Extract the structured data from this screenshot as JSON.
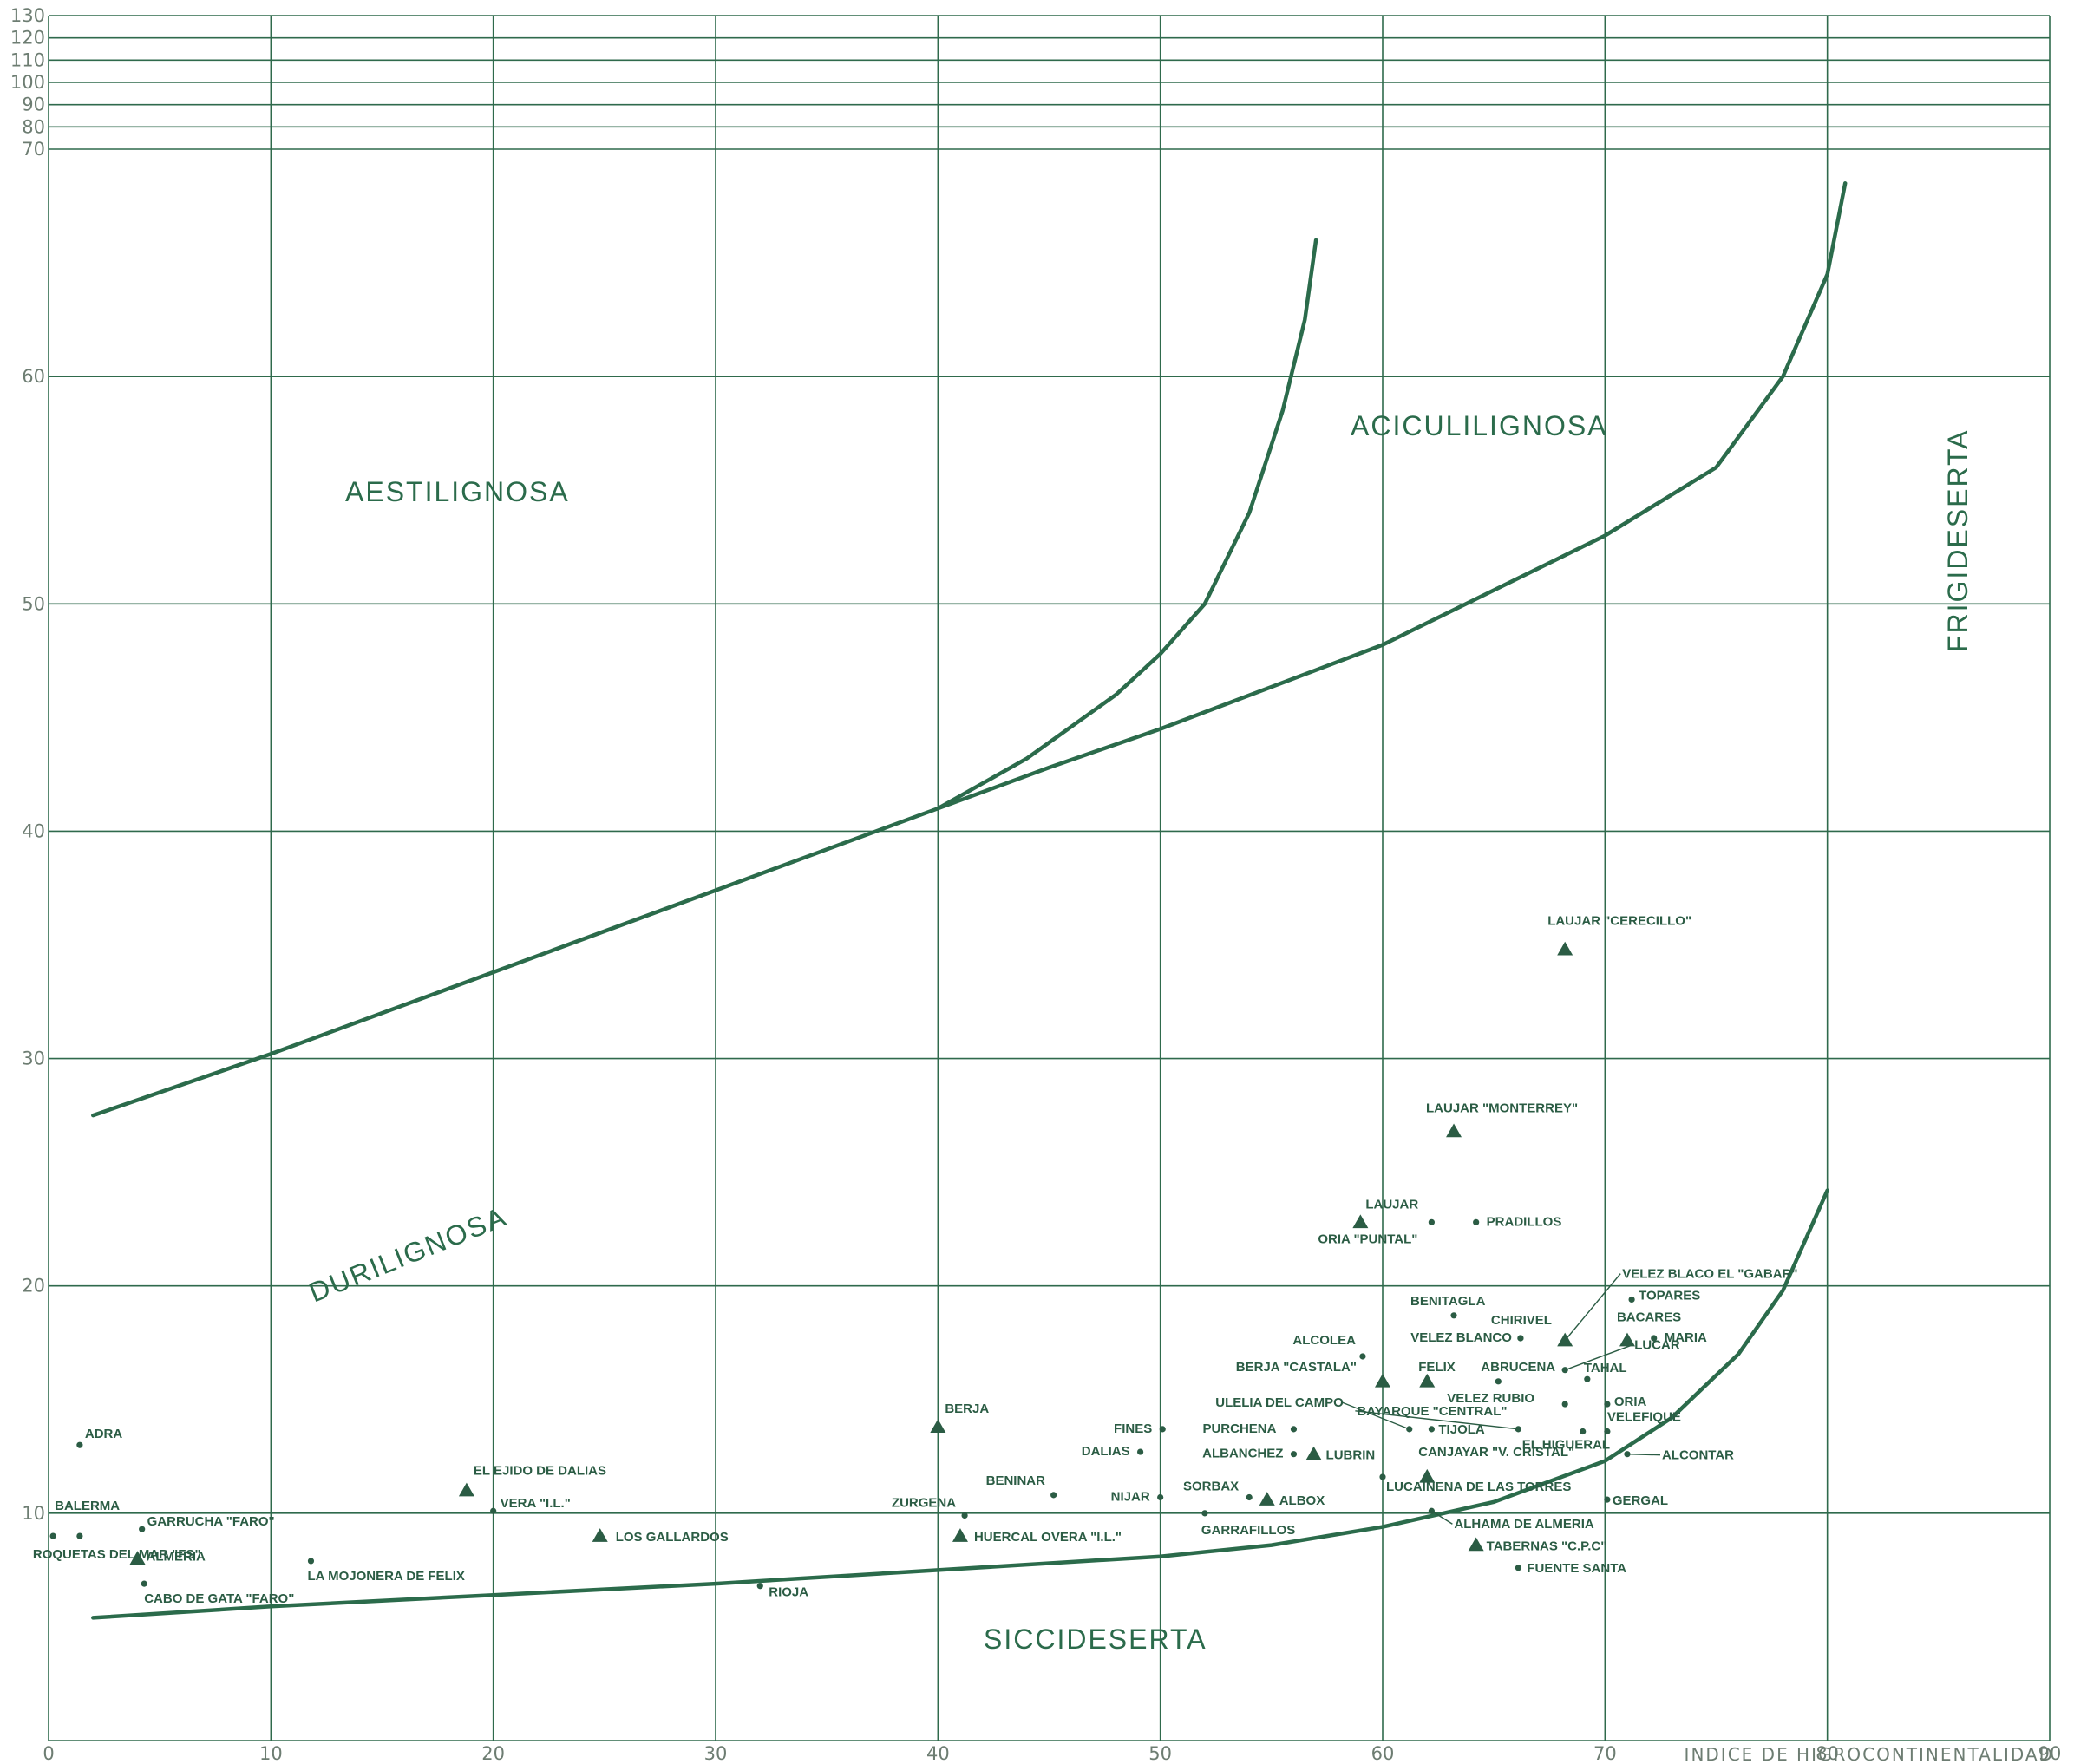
{
  "chart_data": {
    "type": "scatter",
    "title": "",
    "xlabel": "INDICE DE HIGROCONTINENTALIDAD",
    "ylabel": "",
    "xlim": [
      0,
      90
    ],
    "ylim": [
      0,
      130
    ],
    "x_ticks": [
      "0",
      "10",
      "20",
      "30",
      "40",
      "50",
      "60",
      "70",
      "80",
      "90"
    ],
    "y_ticks": [
      "10",
      "20",
      "30",
      "40",
      "50",
      "60",
      "70",
      "80",
      "90",
      "100",
      "110",
      "120",
      "130"
    ],
    "grid": true,
    "regions": [
      "AESTILIGNOSA",
      "ACICULILIGNOSA",
      "DURILIGNOSA",
      "SICCIDESERTA",
      "FRIGIDESERTA"
    ],
    "boundaries": [
      {
        "points": [
          [
            2,
            27.5
          ],
          [
            10,
            30.2
          ],
          [
            20,
            33.8
          ],
          [
            30,
            37.4
          ],
          [
            40,
            41.0
          ],
          [
            45,
            42.8
          ],
          [
            50,
            44.5
          ],
          [
            60,
            48.2
          ],
          [
            70,
            53.0
          ],
          [
            75,
            56.0
          ],
          [
            78,
            60.0
          ],
          [
            80,
            64.5
          ],
          [
            80.8,
            68.5
          ]
        ]
      },
      {
        "points": [
          [
            40,
            41.0
          ],
          [
            44,
            43.2
          ],
          [
            48,
            46.0
          ],
          [
            50,
            47.8
          ],
          [
            52,
            50.0
          ],
          [
            54,
            54.0
          ],
          [
            55.5,
            58.5
          ],
          [
            56.5,
            62.5
          ],
          [
            57,
            66.0
          ]
        ]
      },
      {
        "points": [
          [
            2,
            5.4
          ],
          [
            10,
            5.9
          ],
          [
            20,
            6.4
          ],
          [
            30,
            6.9
          ],
          [
            40,
            7.5
          ],
          [
            50,
            8.1
          ],
          [
            55,
            8.6
          ],
          [
            60,
            9.4
          ],
          [
            65,
            10.5
          ],
          [
            70,
            12.3
          ],
          [
            73,
            14.2
          ],
          [
            76,
            17.0
          ],
          [
            78,
            19.8
          ],
          [
            80,
            24.2
          ]
        ]
      }
    ],
    "series": [
      {
        "marker": "triangle",
        "points": [
          {
            "name": "ALMERIA",
            "x": 4,
            "y": 8.0
          },
          {
            "name": "EL EJIDO DE DALIAS",
            "x": 18.8,
            "y": 11.0
          },
          {
            "name": "LOS GALLARDOS",
            "x": 24.8,
            "y": 9.0
          },
          {
            "name": "BERJA",
            "x": 40,
            "y": 13.8
          },
          {
            "name": "HUERCAL OVERA \"I.L.\"",
            "x": 41,
            "y": 9.0
          },
          {
            "name": "ALBOX",
            "x": 54.8,
            "y": 10.6
          },
          {
            "name": "LUBRIN",
            "x": 56.9,
            "y": 12.6
          },
          {
            "name": "BERJA \"CASTALA\"",
            "x": 60,
            "y": 15.8
          },
          {
            "name": "FELIX",
            "x": 62,
            "y": 15.8
          },
          {
            "name": "CANJAYAR \"V. CRISTAL\"",
            "x": 62,
            "y": 11.6
          },
          {
            "name": "LAUJAR",
            "x": 59,
            "y": 22.8
          },
          {
            "name": "LAUJAR \"MONTERREY\"",
            "x": 63.2,
            "y": 26.8
          },
          {
            "name": "LAUJAR \"CERECILLO\"",
            "x": 68.2,
            "y": 34.8
          },
          {
            "name": "VELEZ BLACO EL \"GABAR\"",
            "x": 68.2,
            "y": 17.6
          },
          {
            "name": "BACARES",
            "x": 71,
            "y": 17.6
          },
          {
            "name": "TABERNAS \"C.P.C\"",
            "x": 64.2,
            "y": 8.6
          }
        ]
      },
      {
        "marker": "dot",
        "points": [
          {
            "name": "ADRA",
            "x": 1.4,
            "y": 13.0
          },
          {
            "name": "BALERMA",
            "x": 0.2,
            "y": 9.0
          },
          {
            "name": "ROQUETAS DEL MAR \"FS\"",
            "x": 1.4,
            "y": 9.0
          },
          {
            "name": "GARRUCHA \"FARO\"",
            "x": 4.2,
            "y": 9.3
          },
          {
            "name": "CABO DE GATA \"FARO\"",
            "x": 4.3,
            "y": 6.9
          },
          {
            "name": "LA MOJONERA DE FELIX",
            "x": 11.8,
            "y": 7.9
          },
          {
            "name": "VERA \"I.L.\"",
            "x": 20,
            "y": 10.1
          },
          {
            "name": "RIOJA",
            "x": 32,
            "y": 6.8
          },
          {
            "name": "ZURGENA",
            "x": 41.2,
            "y": 9.9
          },
          {
            "name": "BENINAR",
            "x": 45.2,
            "y": 10.8
          },
          {
            "name": "NIJAR",
            "x": 50,
            "y": 10.7
          },
          {
            "name": "FINES",
            "x": 50.1,
            "y": 13.7
          },
          {
            "name": "DALIAS",
            "x": 49.1,
            "y": 12.7
          },
          {
            "name": "SORBAX",
            "x": 54,
            "y": 10.7
          },
          {
            "name": "GARRAFILLOS",
            "x": 52,
            "y": 10.0
          },
          {
            "name": "PURCHENA",
            "x": 56,
            "y": 13.7
          },
          {
            "name": "ALBANCHEZ",
            "x": 56,
            "y": 12.6
          },
          {
            "name": "ULELIA DEL CAMPO",
            "x": 61.2,
            "y": 13.7
          },
          {
            "name": "ALCOLEA",
            "x": 59.1,
            "y": 16.9
          },
          {
            "name": "BENITAGLA",
            "x": 63.2,
            "y": 18.7
          },
          {
            "name": "CHIRIVEL",
            "x": 66.2,
            "y": 17.7
          },
          {
            "name": "VELEZ BLANCO",
            "x": 66.2,
            "y": 17.7
          },
          {
            "name": "ORIA \"PUNTAL\"",
            "x": 62.2,
            "y": 22.8
          },
          {
            "name": "PRADILLOS",
            "x": 64.2,
            "y": 22.8
          },
          {
            "name": "TOPARES",
            "x": 71.2,
            "y": 19.4
          },
          {
            "name": "MARIA",
            "x": 72.2,
            "y": 17.7
          },
          {
            "name": "ABRUCENA",
            "x": 65.2,
            "y": 15.8
          },
          {
            "name": "TAHAL",
            "x": 69.2,
            "y": 15.9
          },
          {
            "name": "LUCAR",
            "x": 68.2,
            "y": 16.3
          },
          {
            "name": "VELEZ RUBIO",
            "x": 68.2,
            "y": 14.8
          },
          {
            "name": "ORIA",
            "x": 70.1,
            "y": 14.8
          },
          {
            "name": "BAYARQUE \"CENTRAL\"",
            "x": 66.1,
            "y": 13.7
          },
          {
            "name": "TIJOLA",
            "x": 62.2,
            "y": 13.7
          },
          {
            "name": "EL HIGUERAL",
            "x": 69,
            "y": 13.6
          },
          {
            "name": "VELEFIQUE",
            "x": 70.1,
            "y": 13.6
          },
          {
            "name": "ALCONTAR",
            "x": 71,
            "y": 12.6
          },
          {
            "name": "LUCAINENA DE LAS TORRES",
            "x": 60,
            "y": 11.6
          },
          {
            "name": "ALHAMA DE ALMERIA",
            "x": 62.2,
            "y": 10.1
          },
          {
            "name": "GERGAL",
            "x": 70.1,
            "y": 10.6
          },
          {
            "name": "FUENTE SANTA",
            "x": 66.1,
            "y": 7.6
          }
        ]
      }
    ]
  }
}
